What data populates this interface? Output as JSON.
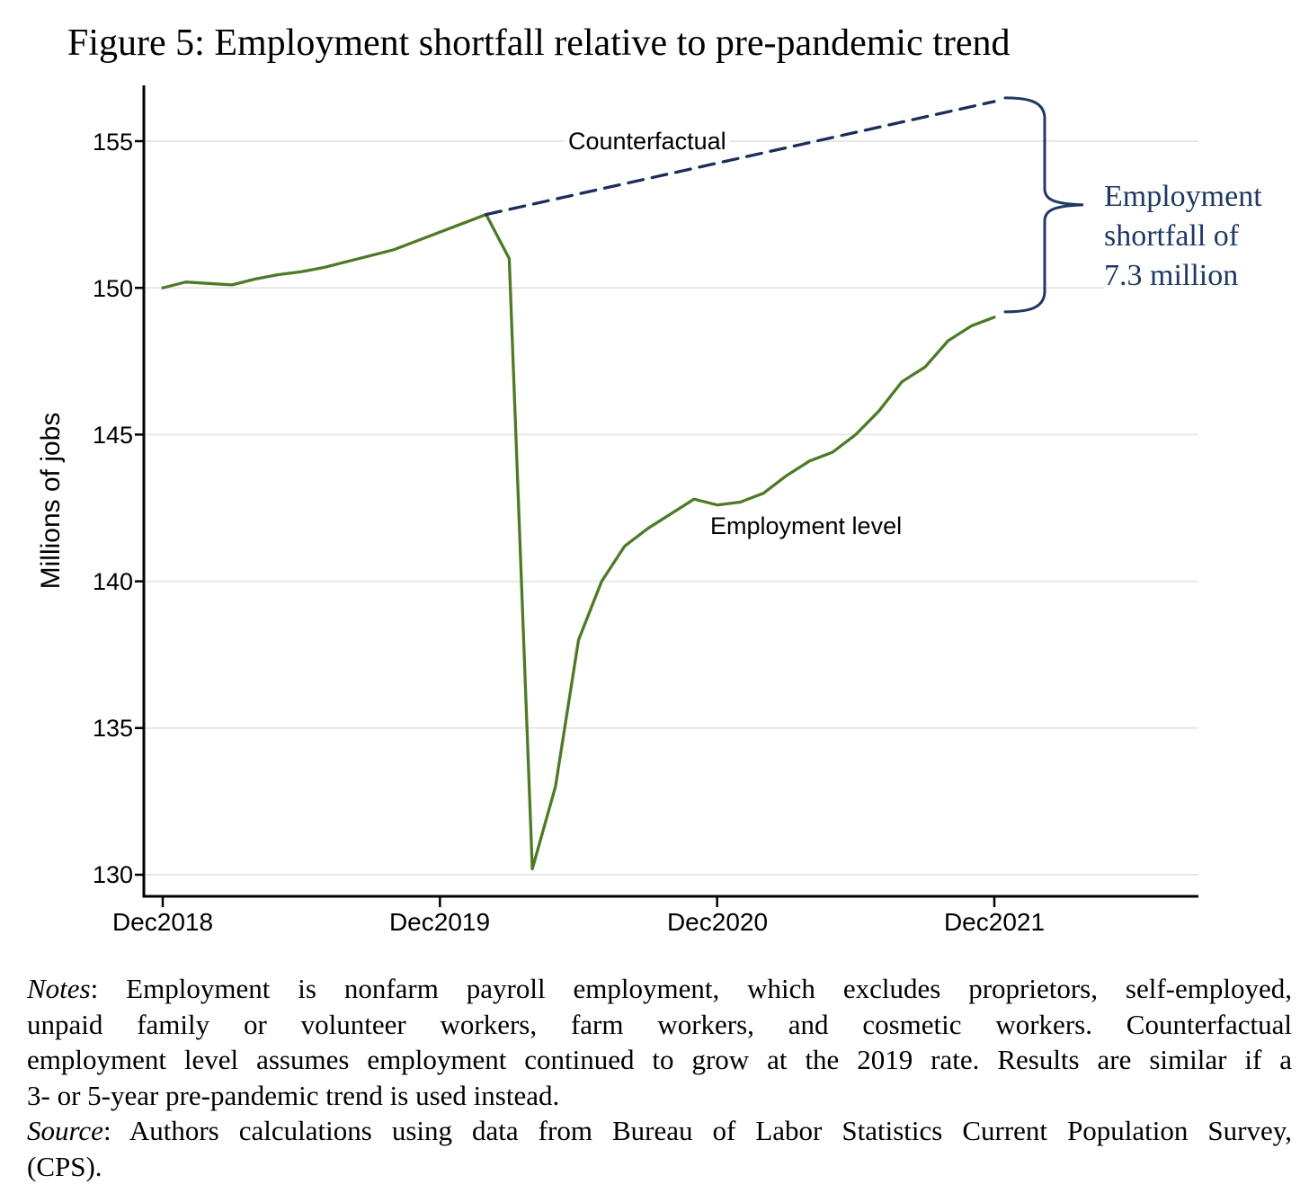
{
  "chart_data": {
    "type": "line",
    "title": "Figure 5: Employment shortfall relative to pre-pandemic trend",
    "ylabel": "Millions of jobs",
    "ylim": [
      129.4,
      156.9
    ],
    "grid": "horizontal-light",
    "yticks": [
      155,
      150,
      145,
      140,
      135,
      130
    ],
    "xticks": [
      "Dec2018",
      "Dec2019",
      "Dec2020",
      "Dec2021"
    ],
    "xtick_months": [
      "2018-12",
      "2019-12",
      "2020-12",
      "2021-12"
    ],
    "colors": {
      "employment_line": "#4e7a27",
      "counterfactual_line": "#1b2d58",
      "annotation_text": "#1f3864",
      "gridline": "#e7e7e7",
      "axis": "#000000"
    },
    "series": [
      {
        "name": "Employment level",
        "style": "solid",
        "color": "#4e7a27",
        "x": [
          "2018-12",
          "2019-01",
          "2019-02",
          "2019-03",
          "2019-04",
          "2019-05",
          "2019-06",
          "2019-07",
          "2019-08",
          "2019-09",
          "2019-10",
          "2019-11",
          "2019-12",
          "2020-01",
          "2020-02",
          "2020-03",
          "2020-04",
          "2020-05",
          "2020-06",
          "2020-07",
          "2020-08",
          "2020-09",
          "2020-10",
          "2020-11",
          "2020-12",
          "2021-01",
          "2021-02",
          "2021-03",
          "2021-04",
          "2021-05",
          "2021-06",
          "2021-07",
          "2021-08",
          "2021-09",
          "2021-10",
          "2021-11",
          "2021-12"
        ],
        "values": [
          150.0,
          150.2,
          150.15,
          150.1,
          150.3,
          150.45,
          150.55,
          150.7,
          150.9,
          151.1,
          151.3,
          151.6,
          151.9,
          152.2,
          152.5,
          151.0,
          130.2,
          133.0,
          138.0,
          140.0,
          141.2,
          141.8,
          142.3,
          142.8,
          142.6,
          142.7,
          143.0,
          143.6,
          144.1,
          144.4,
          145.0,
          145.8,
          146.8,
          147.3,
          148.2,
          148.7,
          149.0
        ]
      },
      {
        "name": "Counterfactual",
        "style": "dashed",
        "color": "#1b2d58",
        "x": [
          "2020-02",
          "2021-12"
        ],
        "values": [
          152.5,
          156.35
        ]
      }
    ],
    "annotation": "Employment shortfall of 7.3 million",
    "annotation_lines": [
      "Employment",
      "shortfall of",
      "7.3 million"
    ]
  },
  "notes": {
    "label": "Notes",
    "line1_rest": ": Employment is nonfarm payroll employment, which excludes proprietors, self-employed,",
    "line2": "unpaid family or volunteer workers, farm workers, and cosmetic workers. Counterfactual",
    "line3": "employment level assumes employment continued to grow at the 2019 rate. Results are similar if a",
    "line4": "3- or 5-year pre-pandemic trend is used instead."
  },
  "source": {
    "label": "Source",
    "line1_rest": ": Authors calculations using data from Bureau of Labor Statistics Current Population Survey,",
    "line2": "(CPS)."
  }
}
